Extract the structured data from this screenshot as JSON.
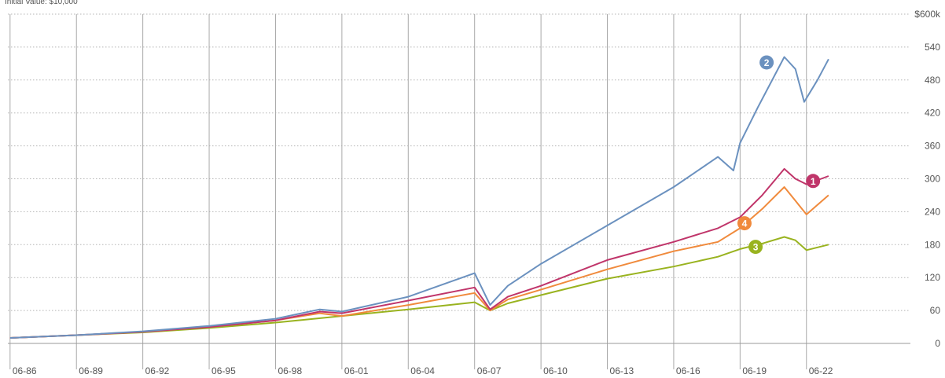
{
  "header_text": "Initial Value: $10,000",
  "chart_data": {
    "type": "line",
    "title": "",
    "xlabel": "",
    "ylabel": "",
    "ylim": [
      0,
      600
    ],
    "y_unit_top": "$600k",
    "y_ticks": [
      0,
      60,
      120,
      180,
      240,
      300,
      360,
      420,
      480,
      540,
      600
    ],
    "y_tick_labels": [
      "0",
      "60",
      "120",
      "180",
      "240",
      "300",
      "360",
      "420",
      "480",
      "540",
      "$600k"
    ],
    "x_ticks": [
      1986.5,
      1989.5,
      1992.5,
      1995.5,
      1998.5,
      2001.5,
      2004.5,
      2007.5,
      2010.5,
      2013.5,
      2016.5,
      2019.5,
      2022.5
    ],
    "x_tick_labels": [
      "06-86",
      "06-89",
      "06-92",
      "06-95",
      "06-98",
      "06-01",
      "06-04",
      "06-07",
      "06-10",
      "06-13",
      "06-16",
      "06-19",
      "06-22"
    ],
    "xlim": [
      1986.4,
      2027.2
    ],
    "grid": true,
    "series": [
      {
        "marker": "3",
        "color": "#99b31f",
        "x": [
          1986.5,
          1989.5,
          1992.5,
          1995.5,
          1998.5,
          2001.5,
          2004.5,
          2007.5,
          2008.2,
          2009.0,
          2010.5,
          2013.5,
          2016.5,
          2018.5,
          2019.5,
          2020.5,
          2021.5,
          2022.0,
          2022.5,
          2023.5
        ],
        "values": [
          10,
          15,
          20,
          28,
          38,
          50,
          62,
          75,
          60,
          73,
          88,
          118,
          140,
          158,
          172,
          182,
          194,
          188,
          170,
          180
        ]
      },
      {
        "marker": "4",
        "color": "#f08a3c",
        "x": [
          1986.5,
          1989.5,
          1992.5,
          1995.5,
          1998.5,
          2000.5,
          2001.5,
          2004.5,
          2007.5,
          2008.2,
          2009.0,
          2010.5,
          2013.5,
          2016.5,
          2018.5,
          2019.5,
          2020.5,
          2021.5,
          2022.0,
          2022.5,
          2023.5
        ],
        "values": [
          10,
          15,
          21,
          30,
          42,
          55,
          50,
          70,
          92,
          60,
          80,
          98,
          135,
          168,
          185,
          210,
          245,
          285,
          260,
          235,
          270
        ]
      },
      {
        "marker": "1",
        "color": "#c0356a",
        "x": [
          1986.5,
          1989.5,
          1992.5,
          1995.5,
          1998.5,
          2000.5,
          2001.5,
          2004.5,
          2007.5,
          2008.2,
          2009.0,
          2010.5,
          2013.5,
          2016.5,
          2018.5,
          2019.5,
          2020.5,
          2021.5,
          2022.0,
          2022.5,
          2023.5
        ],
        "values": [
          10,
          15,
          21,
          30,
          42,
          58,
          55,
          78,
          102,
          62,
          85,
          105,
          152,
          185,
          210,
          230,
          270,
          318,
          300,
          290,
          305
        ]
      },
      {
        "marker": "2",
        "color": "#6b91bf",
        "x": [
          1986.5,
          1989.5,
          1992.5,
          1995.5,
          1998.5,
          2000.5,
          2001.5,
          2004.5,
          2007.5,
          2008.2,
          2009.0,
          2010.5,
          2013.5,
          2016.5,
          2018.5,
          2019.2,
          2019.5,
          2020.3,
          2021.5,
          2022.0,
          2022.4,
          2023.0,
          2023.5
        ],
        "values": [
          10,
          15,
          22,
          32,
          45,
          62,
          58,
          85,
          128,
          70,
          105,
          145,
          215,
          285,
          340,
          315,
          365,
          430,
          522,
          500,
          440,
          480,
          518
        ]
      }
    ],
    "marker_positions": [
      {
        "label": "2",
        "color": "#6b91bf",
        "x": 2020.7,
        "y": 512
      },
      {
        "label": "1",
        "color": "#c0356a",
        "x": 2022.8,
        "y": 296
      },
      {
        "label": "4",
        "color": "#f08a3c",
        "x": 2019.7,
        "y": 219
      },
      {
        "label": "3",
        "color": "#99b31f",
        "x": 2020.2,
        "y": 176
      }
    ]
  }
}
